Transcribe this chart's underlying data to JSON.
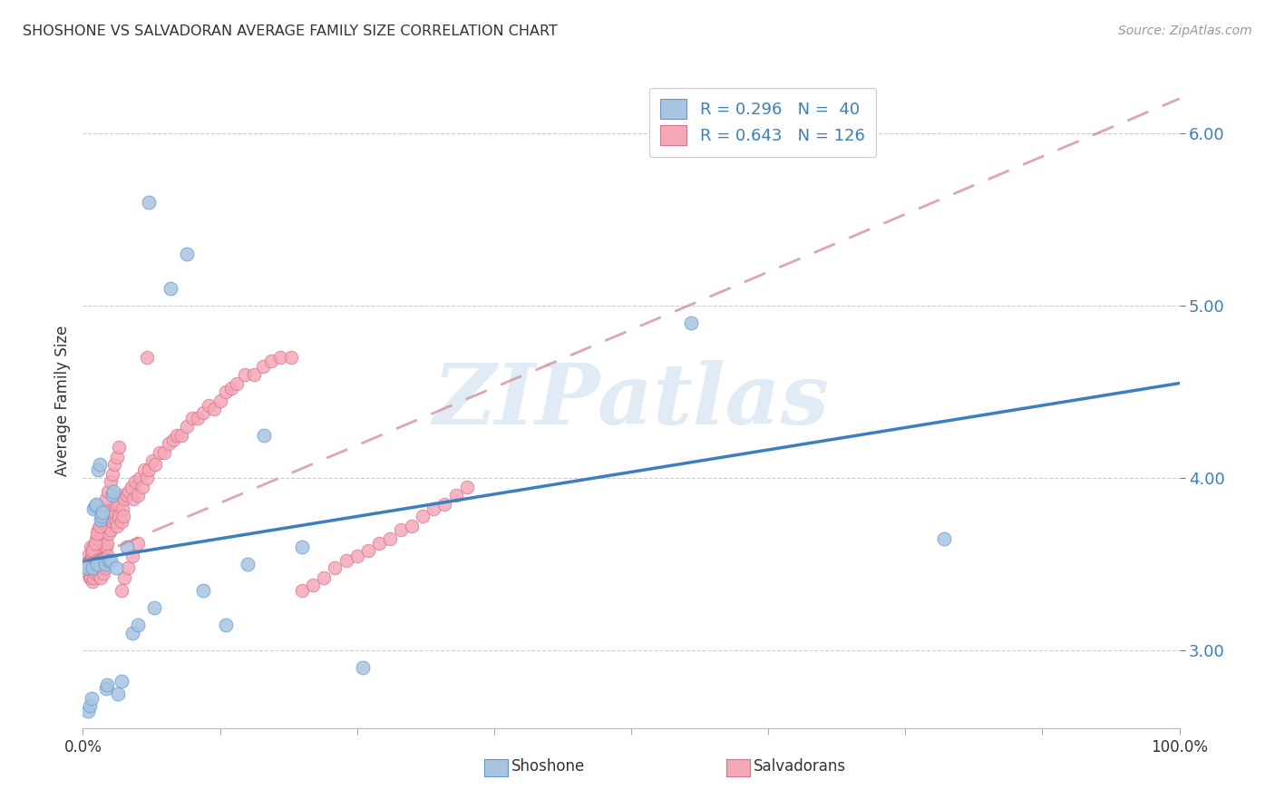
{
  "title": "SHOSHONE VS SALVADORAN AVERAGE FAMILY SIZE CORRELATION CHART",
  "source": "Source: ZipAtlas.com",
  "ylabel": "Average Family Size",
  "yticks": [
    3.0,
    4.0,
    5.0,
    6.0
  ],
  "xlim": [
    0.0,
    1.0
  ],
  "ylim": [
    2.55,
    6.35
  ],
  "shoshone_color": "#a8c4e0",
  "shoshone_edge": "#5b9bd5",
  "salvadoran_color": "#f4a8b8",
  "salvadoran_edge": "#d9748a",
  "trendline_shoshone_color": "#3d7ebf",
  "trendline_salvadoran_color": "#d08090",
  "watermark": "ZIPatlas",
  "shoshone_R": 0.296,
  "shoshone_N": 40,
  "salvadoran_R": 0.643,
  "salvadoran_N": 126,
  "shoshone_trend_x0": 0.0,
  "shoshone_trend_y0": 3.52,
  "shoshone_trend_x1": 1.0,
  "shoshone_trend_y1": 4.55,
  "salvadoran_trend_x0": 0.0,
  "salvadoran_trend_y0": 3.52,
  "salvadoran_trend_x1": 1.0,
  "salvadoran_trend_y1": 6.2,
  "shoshone_x": [
    0.003,
    0.004,
    0.005,
    0.006,
    0.008,
    0.009,
    0.01,
    0.011,
    0.012,
    0.013,
    0.014,
    0.015,
    0.016,
    0.017,
    0.018,
    0.02,
    0.021,
    0.022,
    0.024,
    0.025,
    0.027,
    0.028,
    0.03,
    0.032,
    0.035,
    0.04,
    0.045,
    0.05,
    0.06,
    0.065,
    0.08,
    0.095,
    0.11,
    0.13,
    0.15,
    0.165,
    0.2,
    0.255,
    0.555,
    0.785
  ],
  "shoshone_y": [
    3.5,
    3.48,
    2.65,
    2.68,
    2.72,
    3.48,
    3.82,
    3.84,
    3.85,
    3.5,
    4.05,
    4.08,
    3.76,
    3.78,
    3.8,
    3.5,
    2.78,
    2.8,
    3.52,
    3.52,
    3.9,
    3.92,
    3.48,
    2.75,
    2.82,
    3.6,
    3.1,
    3.15,
    5.6,
    3.25,
    5.1,
    5.3,
    3.35,
    3.15,
    3.5,
    4.25,
    3.6,
    2.9,
    4.9,
    3.65
  ],
  "salvadoran_x": [
    0.003,
    0.004,
    0.005,
    0.005,
    0.006,
    0.006,
    0.007,
    0.007,
    0.008,
    0.008,
    0.009,
    0.009,
    0.01,
    0.01,
    0.011,
    0.011,
    0.012,
    0.012,
    0.013,
    0.013,
    0.014,
    0.014,
    0.015,
    0.015,
    0.016,
    0.016,
    0.017,
    0.017,
    0.018,
    0.018,
    0.019,
    0.019,
    0.02,
    0.02,
    0.021,
    0.021,
    0.022,
    0.022,
    0.023,
    0.023,
    0.024,
    0.025,
    0.026,
    0.027,
    0.028,
    0.029,
    0.03,
    0.031,
    0.032,
    0.033,
    0.034,
    0.035,
    0.036,
    0.037,
    0.038,
    0.04,
    0.042,
    0.044,
    0.046,
    0.048,
    0.05,
    0.052,
    0.054,
    0.056,
    0.058,
    0.06,
    0.063,
    0.066,
    0.07,
    0.074,
    0.078,
    0.082,
    0.086,
    0.09,
    0.095,
    0.1,
    0.105,
    0.11,
    0.115,
    0.12,
    0.125,
    0.13,
    0.135,
    0.14,
    0.148,
    0.156,
    0.164,
    0.172,
    0.18,
    0.19,
    0.2,
    0.21,
    0.22,
    0.23,
    0.24,
    0.25,
    0.26,
    0.27,
    0.28,
    0.29,
    0.3,
    0.31,
    0.32,
    0.33,
    0.34,
    0.35,
    0.007,
    0.009,
    0.011,
    0.013,
    0.015,
    0.017,
    0.019,
    0.021,
    0.023,
    0.025,
    0.027,
    0.029,
    0.031,
    0.033,
    0.035,
    0.038,
    0.041,
    0.045,
    0.05,
    0.058
  ],
  "salvadoran_y": [
    3.5,
    3.48,
    3.55,
    3.45,
    3.52,
    3.42,
    3.6,
    3.42,
    3.55,
    3.48,
    3.4,
    3.58,
    3.6,
    3.42,
    3.55,
    3.45,
    3.65,
    3.48,
    3.5,
    3.62,
    3.45,
    3.7,
    3.5,
    3.62,
    3.55,
    3.42,
    3.58,
    3.48,
    3.52,
    3.68,
    3.45,
    3.72,
    3.65,
    3.48,
    3.72,
    3.6,
    3.62,
    3.72,
    3.55,
    3.75,
    3.68,
    3.7,
    3.82,
    3.75,
    3.8,
    3.85,
    3.75,
    3.72,
    3.85,
    3.78,
    3.9,
    3.75,
    3.82,
    3.78,
    3.88,
    3.9,
    3.92,
    3.95,
    3.88,
    3.98,
    3.9,
    4.0,
    3.95,
    4.05,
    4.0,
    4.05,
    4.1,
    4.08,
    4.15,
    4.15,
    4.2,
    4.22,
    4.25,
    4.25,
    4.3,
    4.35,
    4.35,
    4.38,
    4.42,
    4.4,
    4.45,
    4.5,
    4.52,
    4.55,
    4.6,
    4.6,
    4.65,
    4.68,
    4.7,
    4.7,
    3.35,
    3.38,
    3.42,
    3.48,
    3.52,
    3.55,
    3.58,
    3.62,
    3.65,
    3.7,
    3.72,
    3.78,
    3.82,
    3.85,
    3.9,
    3.95,
    3.52,
    3.58,
    3.62,
    3.68,
    3.72,
    3.78,
    3.82,
    3.88,
    3.92,
    3.98,
    4.02,
    4.08,
    4.12,
    4.18,
    3.35,
    3.42,
    3.48,
    3.55,
    3.62,
    4.7
  ]
}
